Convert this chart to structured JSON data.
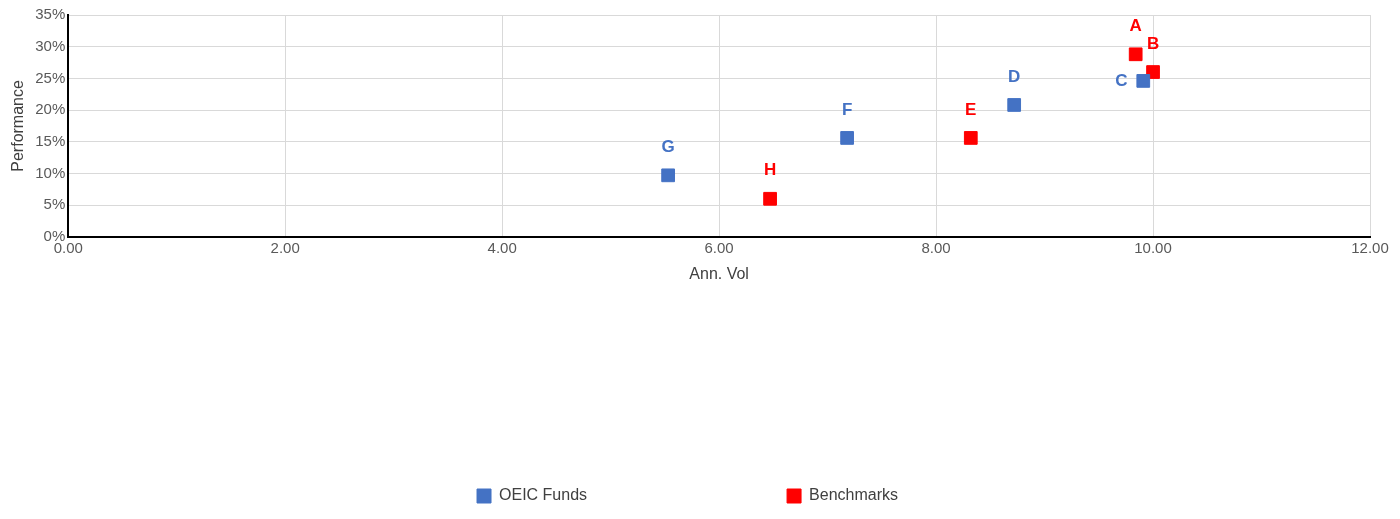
{
  "chart_data": {
    "type": "scatter",
    "xlabel": "Ann. Vol",
    "ylabel": "Performance",
    "marker": "square",
    "grid": true,
    "legend": "bottom",
    "xlim": [
      0,
      12
    ],
    "xticks": [
      {
        "value": 0,
        "label": "0.00"
      },
      {
        "value": 2,
        "label": "2.00"
      },
      {
        "value": 4,
        "label": "4.00"
      },
      {
        "value": 6,
        "label": "6.00"
      },
      {
        "value": 8,
        "label": "8.00"
      },
      {
        "value": 10,
        "label": "10.00"
      },
      {
        "value": 12,
        "label": "12.00"
      }
    ],
    "ylim": [
      0,
      35
    ],
    "yticks": [
      {
        "value": 0,
        "label": "0%"
      },
      {
        "value": 5,
        "label": "5%"
      },
      {
        "value": 10,
        "label": "10%"
      },
      {
        "value": 15,
        "label": "15%"
      },
      {
        "value": 20,
        "label": "20%"
      },
      {
        "value": 25,
        "label": "25%"
      },
      {
        "value": 30,
        "label": "30%"
      },
      {
        "value": 35,
        "label": "35%"
      }
    ],
    "series": [
      {
        "name": "OEIC Funds",
        "color": "#4472c4",
        "x": [
          9.91,
          8.72,
          7.18,
          5.53
        ],
        "values": [
          24.6,
          20.8,
          15.6,
          9.7
        ]
      },
      {
        "name": "Benchmarks",
        "color": "#ff0000",
        "x": [
          9.84,
          10.0,
          8.32,
          6.47
        ],
        "values": [
          28.8,
          26.0,
          15.6,
          6.0
        ]
      }
    ],
    "annotations": [
      {
        "text": "A",
        "x": 9.84,
        "y": 28.8
      },
      {
        "text": "B",
        "x": 10.0,
        "y": 26.0
      },
      {
        "text": "C",
        "x": 9.91,
        "y": 24.6
      },
      {
        "text": "D",
        "x": 8.72,
        "y": 20.8
      },
      {
        "text": "E",
        "x": 8.32,
        "y": 15.6
      },
      {
        "text": "F",
        "x": 7.18,
        "y": 15.6
      },
      {
        "text": "G",
        "x": 5.53,
        "y": 9.7
      },
      {
        "text": "H",
        "x": 6.47,
        "y": 6.0
      }
    ]
  }
}
